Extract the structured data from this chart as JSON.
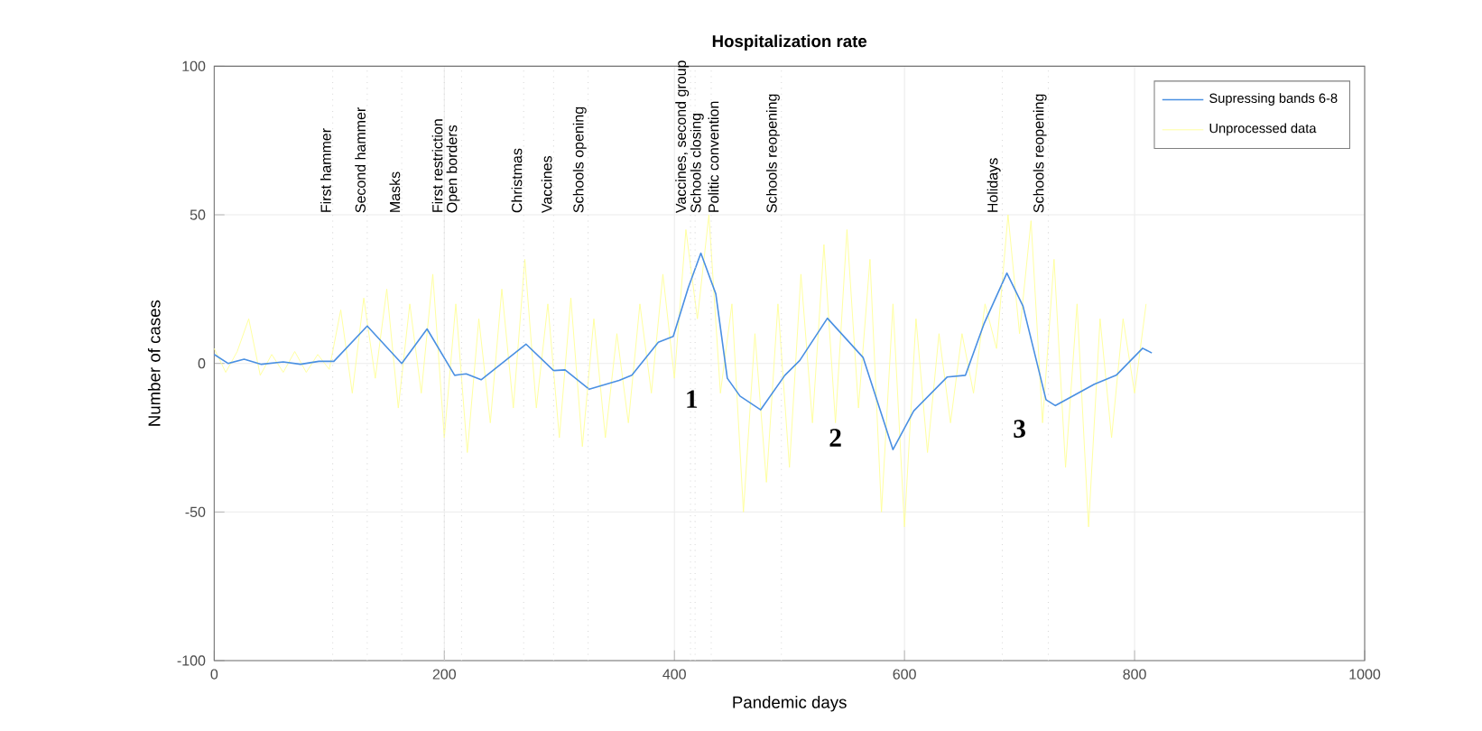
{
  "chart_data": {
    "type": "line",
    "title": "Hospitalization rate",
    "xlabel": "Pandemic days",
    "ylabel": "Number of cases",
    "xlim": [
      0,
      1000
    ],
    "ylim": [
      -100,
      100
    ],
    "xticks": [
      0,
      200,
      400,
      600,
      800,
      1000
    ],
    "yticks": [
      -100,
      -50,
      0,
      50,
      100
    ],
    "grid": true,
    "legend": "top right",
    "marker": "none",
    "line_style": "solid",
    "series": [
      {
        "name": "Supressing bands 6-8",
        "color": "#4a90e2",
        "x": [
          0,
          12,
          26,
          41,
          60,
          75,
          91,
          104,
          133,
          163,
          185,
          209,
          219,
          232,
          271,
          295,
          305,
          326,
          352,
          363,
          386,
          399,
          412,
          423,
          436,
          446,
          457,
          475,
          496,
          509,
          533,
          564,
          590,
          608,
          637,
          653,
          669,
          689,
          703,
          723,
          731,
          765,
          784,
          807,
          815
        ],
        "values": [
          3,
          0,
          1.4,
          -0.3,
          0.5,
          -0.3,
          0.7,
          0.7,
          12.6,
          0,
          11.6,
          -4,
          -3.5,
          -5.5,
          6.5,
          -2.4,
          -2.2,
          -8.7,
          -5.7,
          -4,
          7.1,
          9.1,
          25.4,
          37.1,
          23.4,
          -5,
          -11,
          -15.6,
          -4,
          1,
          15.2,
          2,
          -29,
          -16,
          -4.6,
          -4,
          13.2,
          30.4,
          19.3,
          -12.2,
          -14.2,
          -7,
          -4,
          5.1,
          3.5
        ]
      },
      {
        "name": "Unprocessed data",
        "color": "#ffff99",
        "x": [
          0,
          10,
          20,
          30,
          40,
          50,
          60,
          70,
          80,
          90,
          100,
          110,
          120,
          130,
          140,
          150,
          160,
          170,
          180,
          190,
          200,
          210,
          220,
          230,
          240,
          250,
          260,
          270,
          280,
          290,
          300,
          310,
          320,
          330,
          340,
          350,
          360,
          370,
          380,
          390,
          400,
          410,
          420,
          430,
          440,
          450,
          460,
          470,
          480,
          490,
          500,
          510,
          520,
          530,
          540,
          550,
          560,
          570,
          580,
          590,
          600,
          610,
          620,
          630,
          640,
          650,
          660,
          670,
          680,
          690,
          700,
          710,
          720,
          730,
          740,
          750,
          760,
          770,
          780,
          790,
          800,
          810
        ],
        "values": [
          5,
          -3,
          4,
          15,
          -4,
          3,
          -3,
          4,
          -3,
          3,
          -2,
          18,
          -10,
          22,
          -5,
          25,
          -15,
          20,
          -10,
          30,
          -25,
          20,
          -30,
          15,
          -20,
          25,
          -15,
          35,
          -15,
          20,
          -25,
          22,
          -28,
          15,
          -25,
          10,
          -20,
          20,
          -10,
          30,
          -5,
          45,
          15,
          50,
          -10,
          20,
          -50,
          10,
          -40,
          20,
          -35,
          30,
          -20,
          40,
          -20,
          45,
          -15,
          35,
          -50,
          20,
          -55,
          15,
          -30,
          10,
          -20,
          10,
          -10,
          20,
          5,
          50,
          10,
          48,
          -20,
          35,
          -35,
          20,
          -55,
          15,
          -25,
          15,
          -10,
          20
        ]
      }
    ],
    "ref_lines": [
      {
        "axis": "x",
        "value": 103,
        "label": "First hammer",
        "color": "#d9d9d9",
        "line_style": "dotted"
      },
      {
        "axis": "x",
        "value": 133,
        "label": "Second hammer",
        "color": "#d9d9d9",
        "line_style": "dotted"
      },
      {
        "axis": "x",
        "value": 163,
        "label": "Masks",
        "color": "#d9d9d9",
        "line_style": "dotted"
      },
      {
        "axis": "x",
        "value": 200,
        "label": "First restriction",
        "color": "#d9d9d9",
        "line_style": "dotted"
      },
      {
        "axis": "x",
        "value": 215,
        "label": "Open borders",
        "color": "#d9d9d9",
        "line_style": "dotted"
      },
      {
        "axis": "x",
        "value": 269,
        "label": "Christmas",
        "color": "#d9d9d9",
        "line_style": "dotted"
      },
      {
        "axis": "x",
        "value": 295,
        "label": "Vaccines",
        "color": "#d9d9d9",
        "line_style": "dotted"
      },
      {
        "axis": "x",
        "value": 325,
        "label": "Schools opening",
        "color": "#d9d9d9",
        "line_style": "dotted"
      },
      {
        "axis": "x",
        "value": 414,
        "label": "Vaccines, second group",
        "color": "#d9d9d9",
        "line_style": "dotted"
      },
      {
        "axis": "x",
        "value": 418,
        "label": "Schools closing",
        "color": "#d9d9d9",
        "line_style": "dotted"
      },
      {
        "axis": "x",
        "value": 432,
        "label": "Politic convention",
        "color": "#d9d9d9",
        "line_style": "dotted"
      },
      {
        "axis": "x",
        "value": 493,
        "label": "Schools reopening",
        "color": "#d9d9d9",
        "line_style": "dotted"
      },
      {
        "axis": "x",
        "value": 685,
        "label": "Holidays",
        "color": "#d9d9d9",
        "line_style": "dotted"
      },
      {
        "axis": "x",
        "value": 725,
        "label": "Schools reopening",
        "color": "#d9d9d9",
        "line_style": "dotted"
      }
    ],
    "annotations": [
      "1",
      "2",
      "3"
    ]
  }
}
